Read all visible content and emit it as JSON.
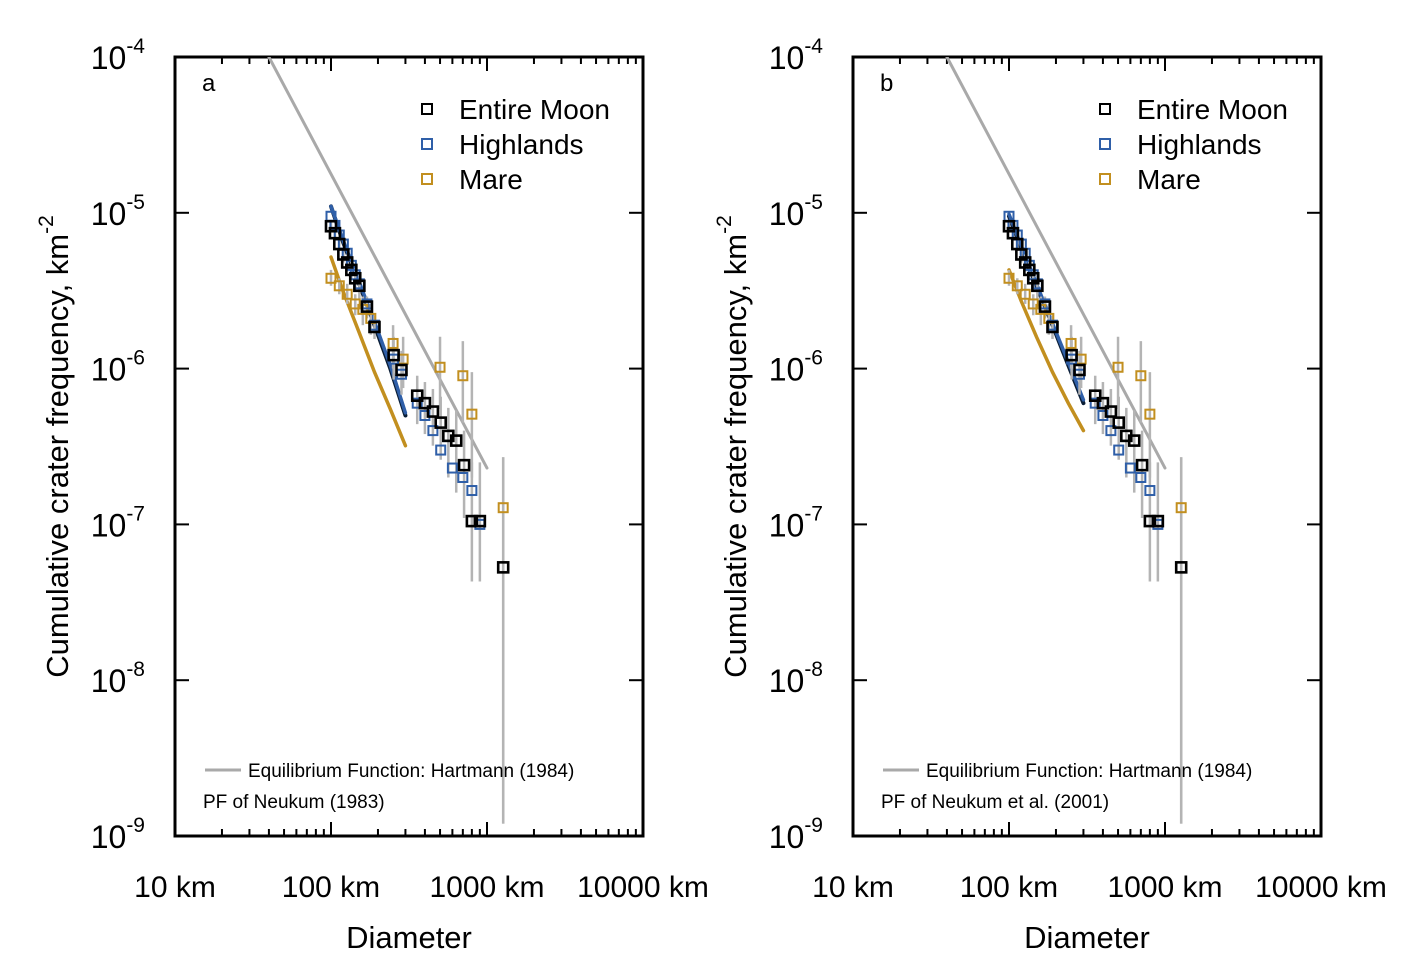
{
  "colors": {
    "entire_moon": "#000000",
    "highlands": "#2f5fa8",
    "mare": "#c28f1f",
    "equilibrium": "#a9a9a9",
    "error_bar": "#b4b4b4",
    "pf_dark": "#0b1e36"
  },
  "chart_data": [
    {
      "type": "scatter",
      "panel_label": "a",
      "x_scale": "log",
      "y_scale": "log",
      "xlim": [
        10,
        10000
      ],
      "ylim": [
        1e-09,
        0.0001
      ],
      "xlabel": "Diameter",
      "ylabel": "Cumulative crater frequency, km",
      "ylabel_sup": "-2",
      "x_ticks": [
        {
          "value": 10,
          "label": "10 km"
        },
        {
          "value": 100,
          "label": "100 km"
        },
        {
          "value": 1000,
          "label": "1000 km"
        },
        {
          "value": 10000,
          "label": "10000 km"
        }
      ],
      "y_ticks": [
        {
          "value": 0.0001,
          "base": "10",
          "exp": "-4"
        },
        {
          "value": 1e-05,
          "base": "10",
          "exp": "-5"
        },
        {
          "value": 1e-06,
          "base": "10",
          "exp": "-6"
        },
        {
          "value": 1e-07,
          "base": "10",
          "exp": "-7"
        },
        {
          "value": 1e-08,
          "base": "10",
          "exp": "-8"
        },
        {
          "value": 1e-09,
          "base": "10",
          "exp": "-9"
        }
      ],
      "legend": [
        {
          "label": "Entire Moon",
          "series": "entire_moon"
        },
        {
          "label": "Highlands",
          "series": "highlands"
        },
        {
          "label": "Mare",
          "series": "mare"
        }
      ],
      "legend_placement": "top-right",
      "lines_legend": [
        {
          "label": "Equilibrium Function: Hartmann (1984)",
          "has_line": true
        },
        {
          "label": "PF of Neukum (1983)",
          "has_line": false
        }
      ],
      "series": [
        {
          "name": "Entire Moon",
          "key": "entire_moon",
          "x": [
            100,
            106,
            113,
            120,
            127,
            135,
            143,
            152,
            170,
            190,
            252,
            283,
            357,
            400,
            450,
            505,
            565,
            635,
            713,
            800,
            900,
            1270
          ],
          "y": [
            8.2e-06,
            7.4e-06,
            6.3e-06,
            5.4e-06,
            4.8e-06,
            4.3e-06,
            3.8e-06,
            3.4e-06,
            2.5e-06,
            1.85e-06,
            1.22e-06,
            9.8e-07,
            6.7e-07,
            6e-07,
            5.3e-07,
            4.5e-07,
            3.7e-07,
            3.45e-07,
            2.4e-07,
            1.05e-07,
            1.05e-07,
            5.3e-08
          ],
          "y_err_low": [
            7.6e-06,
            6.8e-06,
            5.7e-06,
            4.8e-06,
            4.2e-06,
            3.7e-06,
            3.2e-06,
            2.8e-06,
            2.1e-06,
            1.55e-06,
            8.5e-07,
            6.8e-07,
            4.4e-07,
            3.8e-07,
            3.2e-07,
            2.6e-07,
            2e-07,
            1.6e-07,
            1.1e-07,
            4.3e-08,
            4.3e-08,
            1.2e-09
          ],
          "y_err_high": [
            8.8e-06,
            8e-06,
            6.9e-06,
            6e-06,
            5.4e-06,
            4.9e-06,
            4.4e-06,
            4e-06,
            2.9e-06,
            2.2e-06,
            1.6e-06,
            1.3e-06,
            9e-07,
            8.2e-07,
            7.4e-07,
            6.6e-07,
            5.6e-07,
            5.4e-07,
            4e-07,
            2.5e-07,
            2.5e-07,
            2.7e-07
          ]
        },
        {
          "name": "Highlands",
          "key": "highlands",
          "x": [
            100,
            106,
            113,
            120,
            127,
            135,
            143,
            152,
            170,
            190,
            252,
            283,
            357,
            400,
            450,
            505,
            600,
            700,
            800,
            900
          ],
          "y": [
            9.5e-06,
            8.3e-06,
            7.2e-06,
            6.3e-06,
            5.5e-06,
            4.6e-06,
            4e-06,
            3.5e-06,
            2.6e-06,
            1.9e-06,
            1.15e-06,
            9.2e-07,
            6e-07,
            5e-07,
            4e-07,
            3e-07,
            2.3e-07,
            2e-07,
            1.65e-07,
            1e-07
          ]
        },
        {
          "name": "Mare",
          "key": "mare",
          "x": [
            100,
            113,
            127,
            143,
            160,
            180,
            250,
            290,
            500,
            700,
            800,
            1270
          ],
          "y": [
            3.8e-06,
            3.4e-06,
            3e-06,
            2.6e-06,
            2.4e-06,
            2.1e-06,
            1.45e-06,
            1.15e-06,
            1.02e-06,
            9e-07,
            5.1e-07,
            1.28e-07
          ],
          "y_err_low": [
            3.4e-06,
            3e-06,
            2.6e-06,
            2.2e-06,
            1.9e-06,
            1.65e-06,
            1e-06,
            7.5e-07,
            5.5e-07,
            4.5e-07,
            2e-07,
            1.2e-09
          ],
          "y_err_high": [
            4.3e-06,
            3.8e-06,
            3.5e-06,
            3e-06,
            2.9e-06,
            2.6e-06,
            1.9e-06,
            1.6e-06,
            1.6e-06,
            1.5e-06,
            9.5e-07,
            2.7e-07
          ]
        }
      ],
      "lines": [
        {
          "key": "equilibrium",
          "x": [
            40,
            1000
          ],
          "y": [
            0.0001,
            2.3e-07
          ]
        },
        {
          "key": "pf_entire",
          "x": [
            100,
            120,
            150,
            190,
            240,
            300
          ],
          "y": [
            1.1e-05,
            6.4e-06,
            3.6e-06,
            1.9e-06,
            1e-06,
            5e-07
          ]
        },
        {
          "key": "pf_highlands",
          "x": [
            100,
            120,
            150,
            190,
            240,
            300
          ],
          "y": [
            1.1e-05,
            6.6e-06,
            3.7e-06,
            2e-06,
            1.05e-06,
            5.2e-07
          ]
        },
        {
          "key": "pf_mare",
          "x": [
            100,
            120,
            150,
            190,
            240,
            300
          ],
          "y": [
            5.2e-06,
            3.1e-06,
            1.75e-06,
            9.5e-07,
            5.5e-07,
            3.2e-07
          ]
        }
      ]
    },
    {
      "type": "scatter",
      "panel_label": "b",
      "x_scale": "log",
      "y_scale": "log",
      "xlim": [
        10,
        10000
      ],
      "ylim": [
        1e-09,
        0.0001
      ],
      "xlabel": "Diameter",
      "ylabel": "Cumulative crater frequency, km",
      "ylabel_sup": "-2",
      "x_ticks": [
        {
          "value": 10,
          "label": "10 km"
        },
        {
          "value": 100,
          "label": "100 km"
        },
        {
          "value": 1000,
          "label": "1000 km"
        },
        {
          "value": 10000,
          "label": "10000 km"
        }
      ],
      "y_ticks": [
        {
          "value": 0.0001,
          "base": "10",
          "exp": "-4"
        },
        {
          "value": 1e-05,
          "base": "10",
          "exp": "-5"
        },
        {
          "value": 1e-06,
          "base": "10",
          "exp": "-6"
        },
        {
          "value": 1e-07,
          "base": "10",
          "exp": "-7"
        },
        {
          "value": 1e-08,
          "base": "10",
          "exp": "-8"
        },
        {
          "value": 1e-09,
          "base": "10",
          "exp": "-9"
        }
      ],
      "legend": [
        {
          "label": "Entire Moon",
          "series": "entire_moon"
        },
        {
          "label": "Highlands",
          "series": "highlands"
        },
        {
          "label": "Mare",
          "series": "mare"
        }
      ],
      "legend_placement": "top-right",
      "lines_legend": [
        {
          "label": "Equilibrium Function: Hartmann (1984)",
          "has_line": true
        },
        {
          "label": "PF of Neukum et al. (2001)",
          "has_line": false
        }
      ],
      "series": [
        {
          "name": "Entire Moon",
          "key": "entire_moon",
          "x": [
            100,
            106,
            113,
            120,
            127,
            135,
            143,
            152,
            170,
            190,
            252,
            283,
            357,
            400,
            450,
            505,
            565,
            635,
            713,
            800,
            900,
            1270
          ],
          "y": [
            8.2e-06,
            7.4e-06,
            6.3e-06,
            5.4e-06,
            4.8e-06,
            4.3e-06,
            3.8e-06,
            3.4e-06,
            2.5e-06,
            1.85e-06,
            1.22e-06,
            9.8e-07,
            6.7e-07,
            6e-07,
            5.3e-07,
            4.5e-07,
            3.7e-07,
            3.45e-07,
            2.4e-07,
            1.05e-07,
            1.05e-07,
            5.3e-08
          ],
          "y_err_low": [
            7.6e-06,
            6.8e-06,
            5.7e-06,
            4.8e-06,
            4.2e-06,
            3.7e-06,
            3.2e-06,
            2.8e-06,
            2.1e-06,
            1.55e-06,
            8.5e-07,
            6.8e-07,
            4.4e-07,
            3.8e-07,
            3.2e-07,
            2.6e-07,
            2e-07,
            1.6e-07,
            1.1e-07,
            4.3e-08,
            4.3e-08,
            1.2e-09
          ],
          "y_err_high": [
            8.8e-06,
            8e-06,
            6.9e-06,
            6e-06,
            5.4e-06,
            4.9e-06,
            4.4e-06,
            4e-06,
            2.9e-06,
            2.2e-06,
            1.6e-06,
            1.3e-06,
            9e-07,
            8.2e-07,
            7.4e-07,
            6.6e-07,
            5.6e-07,
            5.4e-07,
            4e-07,
            2.5e-07,
            2.5e-07,
            2.7e-07
          ]
        },
        {
          "name": "Highlands",
          "key": "highlands",
          "x": [
            100,
            106,
            113,
            120,
            127,
            135,
            143,
            152,
            170,
            190,
            252,
            283,
            357,
            400,
            450,
            505,
            600,
            700,
            800,
            900
          ],
          "y": [
            9.5e-06,
            8.3e-06,
            7.2e-06,
            6.3e-06,
            5.5e-06,
            4.6e-06,
            4e-06,
            3.5e-06,
            2.6e-06,
            1.9e-06,
            1.15e-06,
            9.2e-07,
            6e-07,
            5e-07,
            4e-07,
            3e-07,
            2.3e-07,
            2e-07,
            1.65e-07,
            1e-07
          ]
        },
        {
          "name": "Mare",
          "key": "mare",
          "x": [
            100,
            113,
            127,
            143,
            160,
            180,
            250,
            290,
            500,
            700,
            800,
            1270
          ],
          "y": [
            3.8e-06,
            3.4e-06,
            3e-06,
            2.6e-06,
            2.4e-06,
            2.1e-06,
            1.45e-06,
            1.15e-06,
            1.02e-06,
            9e-07,
            5.1e-07,
            1.28e-07
          ],
          "y_err_low": [
            3.4e-06,
            3e-06,
            2.6e-06,
            2.2e-06,
            1.9e-06,
            1.65e-06,
            1e-06,
            7.5e-07,
            5.5e-07,
            4.5e-07,
            2e-07,
            1.2e-09
          ],
          "y_err_high": [
            4.3e-06,
            3.8e-06,
            3.5e-06,
            3e-06,
            2.9e-06,
            2.6e-06,
            1.9e-06,
            1.6e-06,
            1.6e-06,
            1.5e-06,
            9.5e-07,
            2.7e-07
          ]
        }
      ],
      "lines": [
        {
          "key": "equilibrium",
          "x": [
            40,
            1000
          ],
          "y": [
            0.0001,
            2.3e-07
          ]
        },
        {
          "key": "pf_entire",
          "x": [
            100,
            120,
            150,
            190,
            240,
            300
          ],
          "y": [
            9.5e-06,
            5.9e-06,
            3.4e-06,
            1.9e-06,
            1.05e-06,
            6e-07
          ]
        },
        {
          "key": "pf_highlands",
          "x": [
            100,
            120,
            150,
            190,
            240,
            300
          ],
          "y": [
            9.8e-06,
            6.1e-06,
            3.5e-06,
            1.95e-06,
            1.1e-06,
            6.3e-07
          ]
        },
        {
          "key": "pf_mare",
          "x": [
            100,
            120,
            150,
            190,
            240,
            300
          ],
          "y": [
            4.3e-06,
            2.7e-06,
            1.6e-06,
            9.5e-07,
            6e-07,
            4e-07
          ]
        }
      ]
    }
  ]
}
